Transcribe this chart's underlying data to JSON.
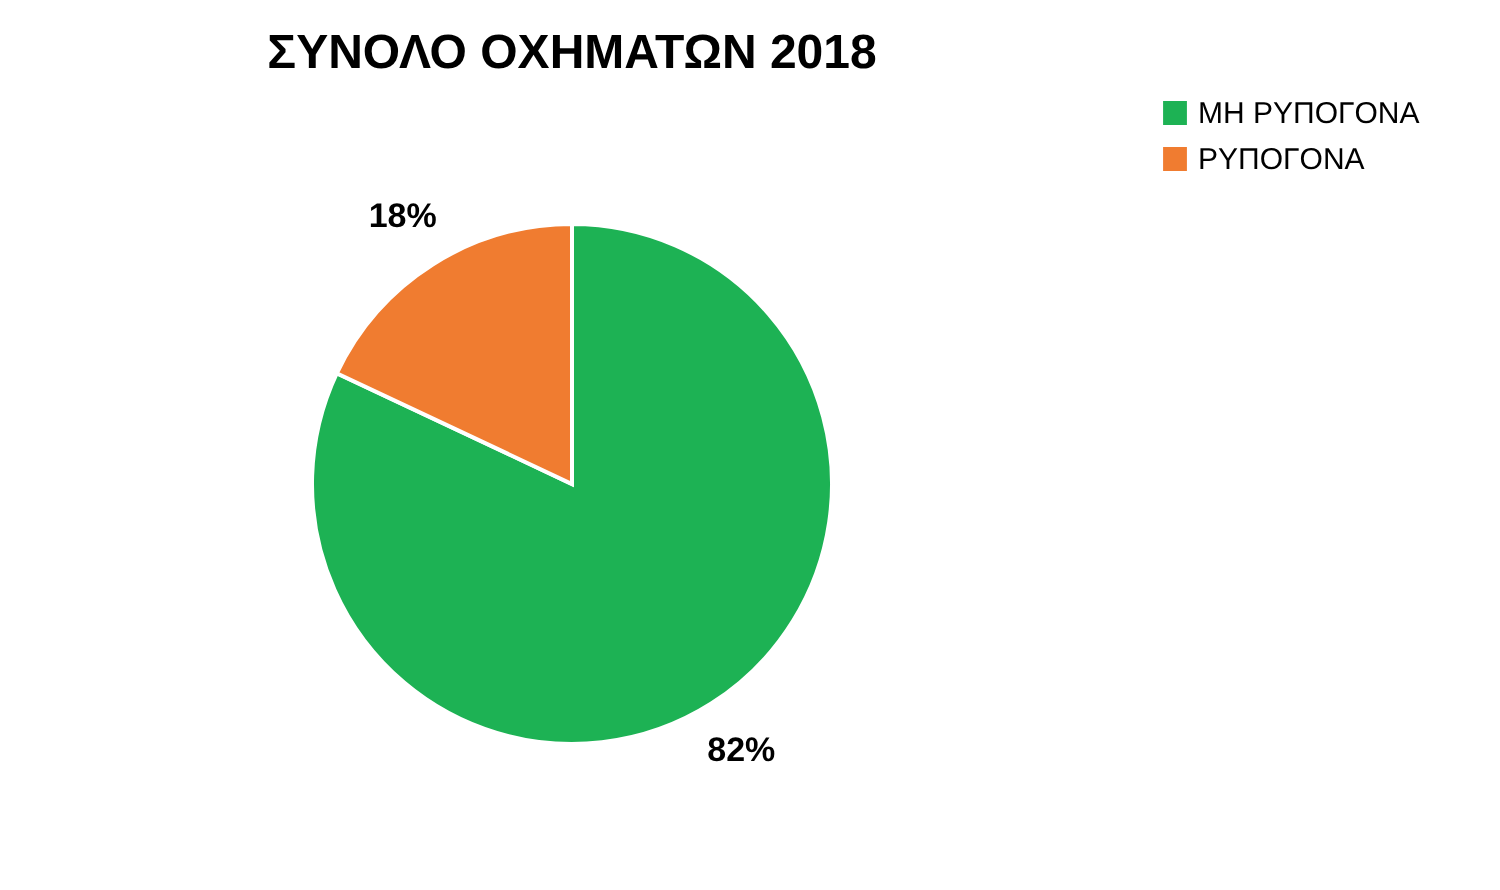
{
  "chart_data": {
    "type": "pie",
    "title": "ΣΥΝΟΛΟ ΟΧΗΜΑΤΩΝ 2018",
    "categories": [
      "ΜΗ ΡΥΠΟΓΟΝΑ",
      "ΡΥΠΟΓΟΝΑ"
    ],
    "values": [
      82,
      18
    ],
    "colors": [
      "#1db254",
      "#f07c30"
    ],
    "value_labels": [
      "82%",
      "18%"
    ],
    "legend": "right"
  }
}
